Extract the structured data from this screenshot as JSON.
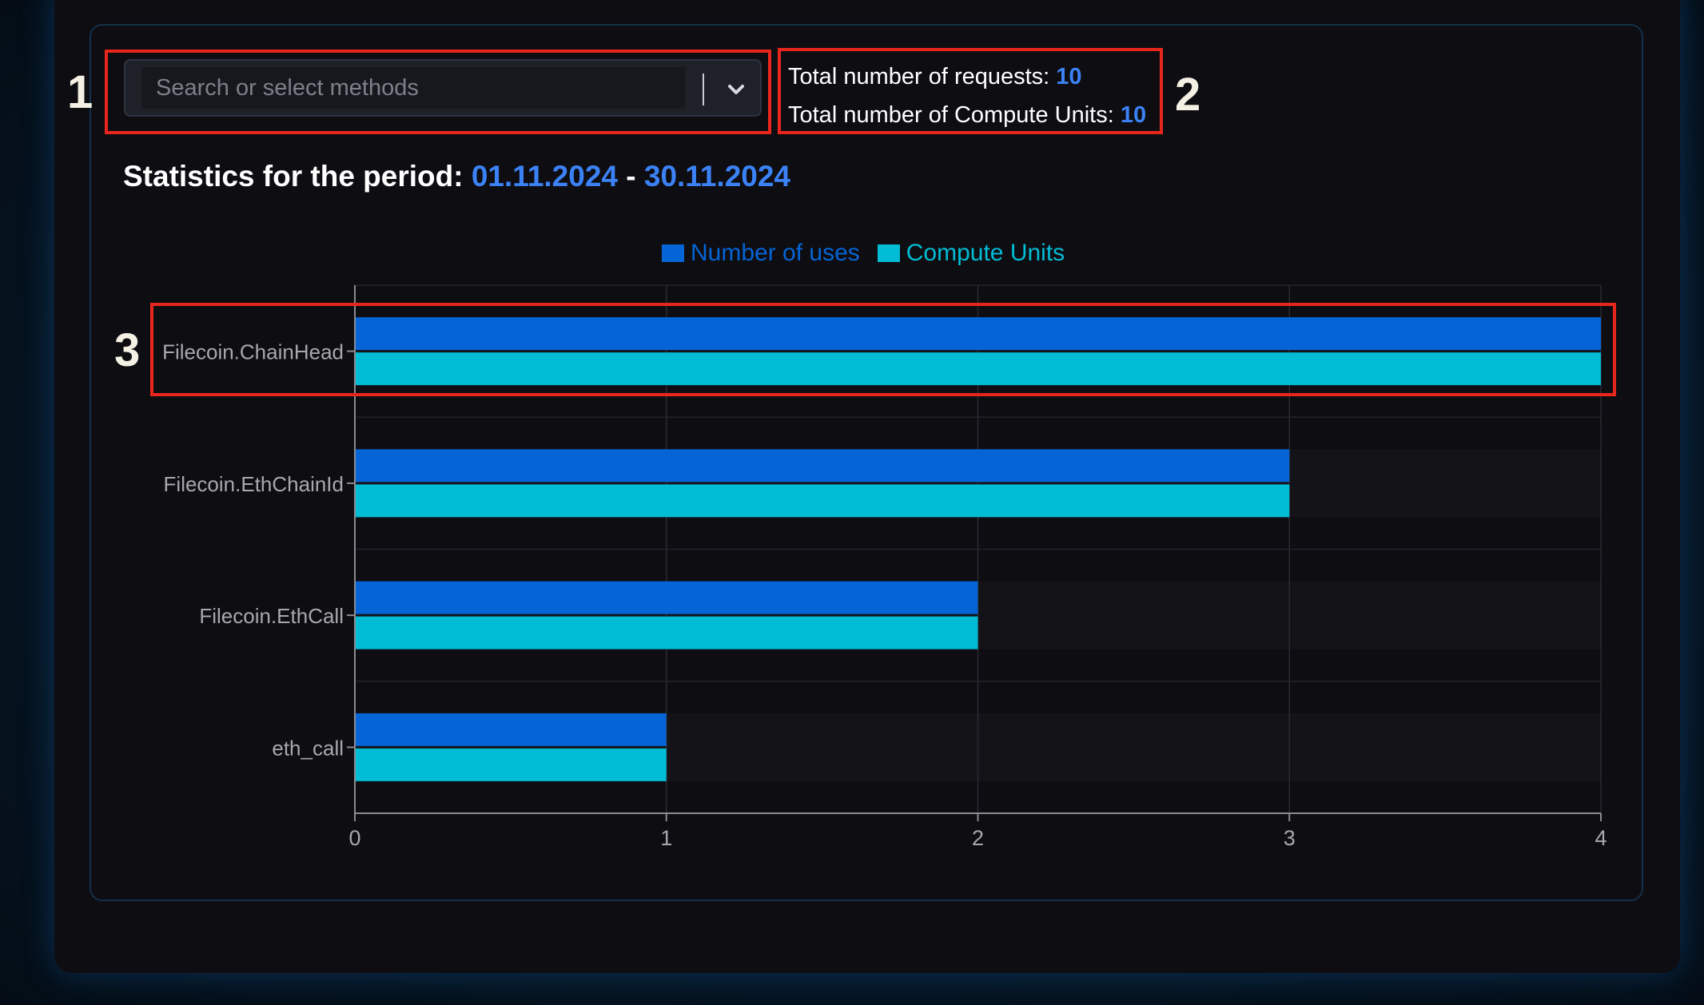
{
  "search": {
    "placeholder": "Search or select methods",
    "value": ""
  },
  "totals": {
    "requests_label": "Total number of requests:",
    "requests_value": "10",
    "compute_label": "Total number of Compute Units:",
    "compute_value": "10"
  },
  "period": {
    "label": "Statistics for the period:",
    "start": "01.11.2024",
    "separator": "-",
    "end": "30.11.2024"
  },
  "annotations": [
    "1",
    "2",
    "3"
  ],
  "colors": {
    "uses": "#0565d6",
    "compute": "#00bcd4",
    "accent": "#3b82f6",
    "annotation": "#e8261c"
  },
  "icons": {
    "dropdown": "chevron-down-icon"
  },
  "chart_data": {
    "type": "bar",
    "orientation": "horizontal",
    "categories": [
      "Filecoin.ChainHead",
      "Filecoin.EthChainId",
      "Filecoin.EthCall",
      "eth_call"
    ],
    "series": [
      {
        "name": "Number of uses",
        "values": [
          4,
          3,
          2,
          1
        ]
      },
      {
        "name": "Compute Units",
        "values": [
          4,
          3,
          2,
          1
        ]
      }
    ],
    "xlim": [
      0,
      4
    ],
    "xticks": [
      "0",
      "1",
      "2",
      "3",
      "4"
    ],
    "grid": true,
    "legend": "top-center"
  }
}
